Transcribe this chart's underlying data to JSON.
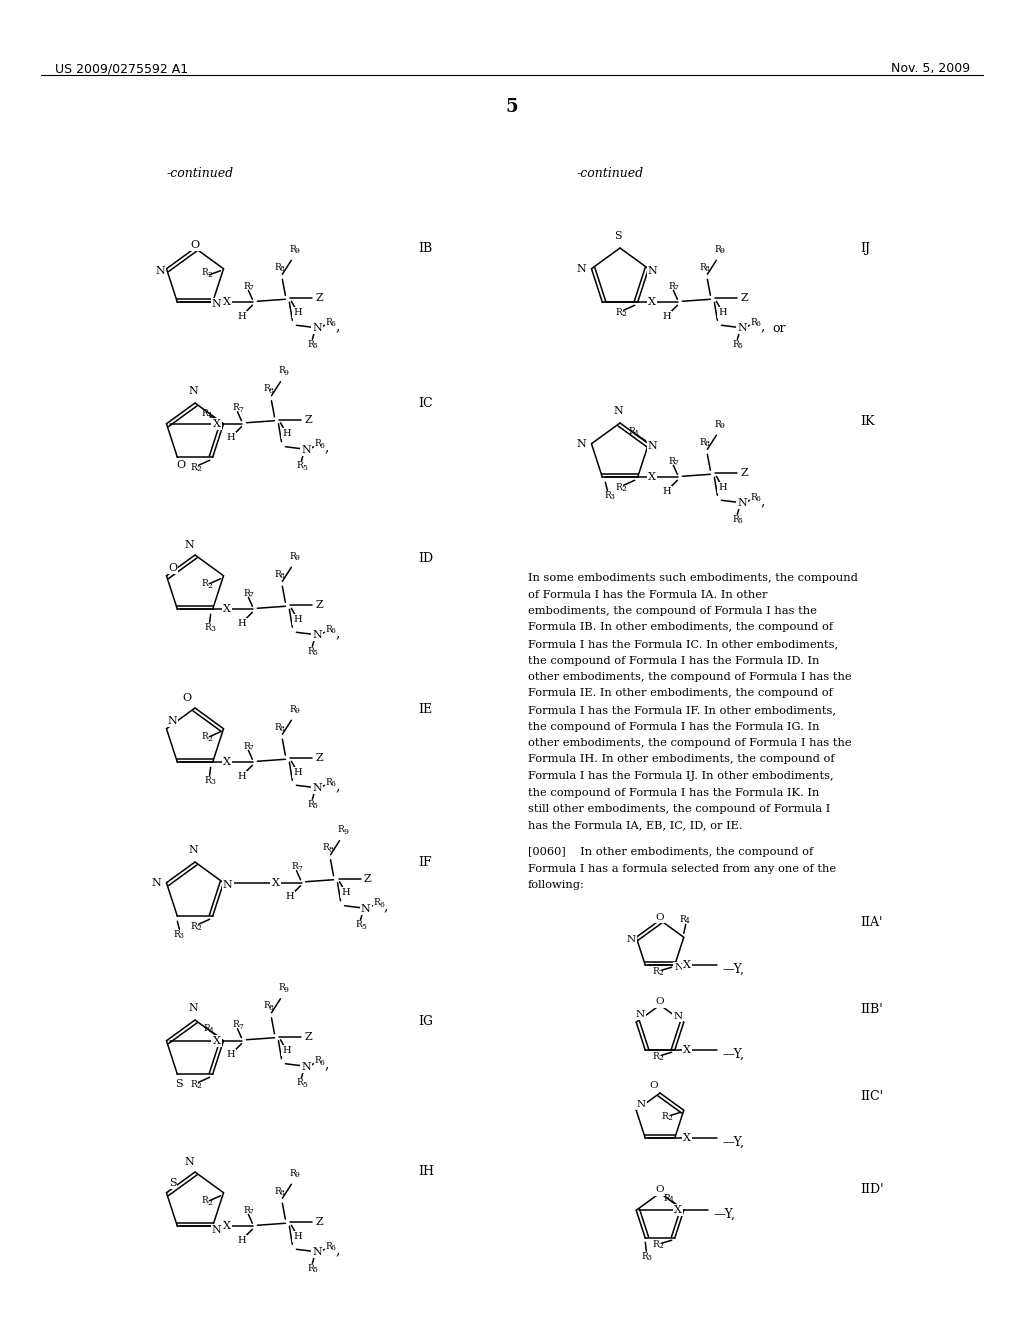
{
  "page_number": "5",
  "patent_number": "US 2009/0275592 A1",
  "patent_date": "Nov. 5, 2009",
  "background_color": "#ffffff",
  "text_color": "#000000",
  "body_paragraph": "In some embodiments such embodiments, the compound of Formula I has the Formula IA. In other embodiments, the compound of Formula I has the Formula IB. In other embodiments, the compound of Formula I has the Formula IC. In other embodiments, the compound of Formula I has the Formula ID. In other embodiments, the compound of Formula I has the Formula IE. In other embodiments, the compound of Formula I has the Formula IF. In other embodiments, the compound of Formula I has the Formula IG. In other embodiments, the compound of Formula I has the Formula IH. In other embodiments, the compound of Formula I has the Formula IJ. In other embodiments, the compound of Formula I has the Formula IK. In still other embodiments, the compound of Formula I has the Formula IA, EB, IC, ID, or IE.",
  "para_0060": "[0060]    In other embodiments, the compound of Formula I has a formula selected from any one of the following:"
}
